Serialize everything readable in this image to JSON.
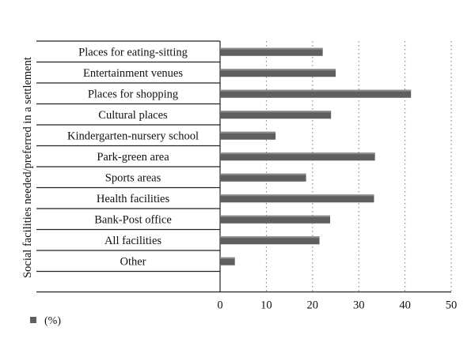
{
  "chart_data": {
    "type": "bar",
    "orientation": "horizontal",
    "categories": [
      "Places for eating-sitting",
      "Entertainment venues",
      "Places for shopping",
      "Cultural places",
      "Kindergarten-nursery school",
      "Park-green area",
      "Sports areas",
      "Health facilities",
      "Bank-Post office",
      "All facilities",
      "Other"
    ],
    "series": [
      {
        "name": "(%)",
        "values": [
          22.2,
          25.0,
          41.3,
          24.0,
          12.0,
          33.5,
          18.6,
          33.3,
          23.8,
          21.5,
          3.2
        ]
      }
    ],
    "xlim": [
      0,
      50
    ],
    "xticks": [
      "0",
      "10",
      "20",
      "30",
      "40",
      "50"
    ],
    "ylabel": "Social facilities needed/preferred in a settlement",
    "xlabel": "",
    "grid": "vertical-dotted",
    "legend_position": "bottom-left",
    "bar_color": "#5f5f5f"
  }
}
